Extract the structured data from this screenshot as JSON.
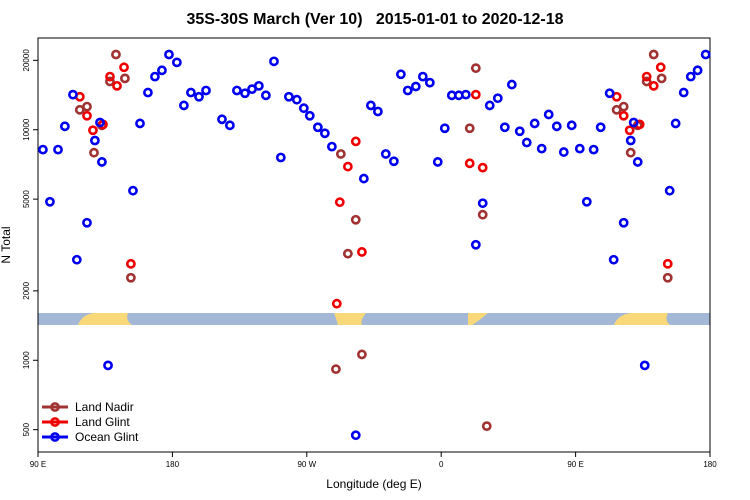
{
  "chart_data": {
    "type": "scatter",
    "title": "35S-30S March (Ver 10)   2015-01-01 to 2020-12-18",
    "x_label": "Longitude (deg E)",
    "y_label": "N Total",
    "log_y": true,
    "legend": "lower left",
    "xlim": [
      90,
      540
    ],
    "xticks": [
      {
        "value": 90,
        "label": "90 E"
      },
      180,
      {
        "value": 270,
        "label": "90 W"
      },
      {
        "value": 360,
        "label": "0"
      },
      {
        "value": 450,
        "label": "90 E"
      },
      {
        "value": 540,
        "label": "180"
      }
    ],
    "ylim": [
      400,
      25000
    ],
    "yticks": [
      500,
      1000,
      2000,
      5000,
      10000,
      20000
    ],
    "series": [
      {
        "name": "Land Nadir",
        "color": "#a03232",
        "x": [
          118,
          122.8,
          127.5,
          132.8,
          138.2,
          142.2,
          148.2,
          152.2,
          289.5,
          292.8,
          297.5,
          302.8,
          306.9,
          379.1,
          383.2,
          387.8,
          390.5,
          477.5,
          482.2,
          486.9,
          491.6,
          497.6,
          502.3,
          507.6,
          511.7
        ],
        "values": [
          12200,
          12600,
          7950,
          10450,
          16200,
          21200,
          16700,
          2280,
          915,
          7850,
          2900,
          4070,
          1060,
          10150,
          18500,
          4280,
          518,
          12200,
          12600,
          7950,
          10450,
          16200,
          21200,
          16700,
          2280
        ]
      },
      {
        "name": "Land Glint",
        "color": "#ee0000",
        "x": [
          118,
          122.8,
          126.8,
          133.5,
          138.2,
          142.9,
          147.6,
          152.2,
          290.1,
          292.1,
          297.5,
          302.8,
          306.9,
          379.1,
          383.2,
          387.8,
          477.5,
          482.2,
          486.2,
          492.9,
          497.6,
          502.3,
          507,
          511.7
        ],
        "values": [
          13900,
          11500,
          9950,
          10550,
          17000,
          15500,
          18660,
          2620,
          1760,
          4850,
          6920,
          8900,
          2950,
          7150,
          14200,
          6850,
          13900,
          11500,
          9950,
          10550,
          17000,
          15500,
          18660,
          2620
        ]
      },
      {
        "name": "Ocean Glint",
        "color": "#0000ee",
        "x": [
          93.3,
          98,
          103.4,
          108,
          113.4,
          116,
          122.8,
          128.1,
          131.5,
          132.8,
          136.9,
          153.6,
          158.3,
          163.6,
          168.3,
          173,
          177.7,
          183,
          187.7,
          192.4,
          197.8,
          202.5,
          213.2,
          218.5,
          223.2,
          228.6,
          233.3,
          237.9,
          242.6,
          248,
          252.6,
          258,
          263.3,
          268,
          272,
          277.4,
          282.1,
          286.8,
          308.2,
          302.8,
          312.9,
          317.6,
          322.9,
          328.3,
          333,
          337.6,
          343,
          347.7,
          352.4,
          357.7,
          362.4,
          367.1,
          371.8,
          376.5,
          383.2,
          387.8,
          392.5,
          397.9,
          402.6,
          407.3,
          412.6,
          417.3,
          422.6,
          427.3,
          432,
          437.4,
          442.1,
          447.4,
          452.8,
          457.5,
          462.1,
          466.8,
          472.8,
          475.5,
          482.2,
          486.9,
          488.9,
          491.6,
          496.3,
          513,
          517,
          522.4,
          527.1,
          531.7,
          537.1
        ],
        "values": [
          8200,
          4870,
          8200,
          10350,
          14200,
          2730,
          3950,
          8980,
          10750,
          7250,
          950,
          5440,
          10650,
          14500,
          17000,
          18100,
          21200,
          19600,
          12750,
          14500,
          13900,
          14800,
          11100,
          10450,
          14800,
          14400,
          15000,
          15500,
          14100,
          19800,
          7580,
          13900,
          13500,
          12400,
          11500,
          10250,
          9650,
          8450,
          6140,
          473,
          12750,
          12000,
          7850,
          7300,
          17400,
          14800,
          15400,
          17000,
          16000,
          7250,
          10150,
          14100,
          14100,
          14200,
          3170,
          4800,
          12750,
          13700,
          10250,
          15700,
          9850,
          8800,
          10650,
          8280,
          11650,
          10350,
          8000,
          10450,
          8280,
          4870,
          8200,
          10250,
          14400,
          2730,
          3950,
          8980,
          10750,
          7250,
          950,
          5440,
          10650,
          14500,
          17000,
          18100,
          21200
        ]
      }
    ]
  }
}
